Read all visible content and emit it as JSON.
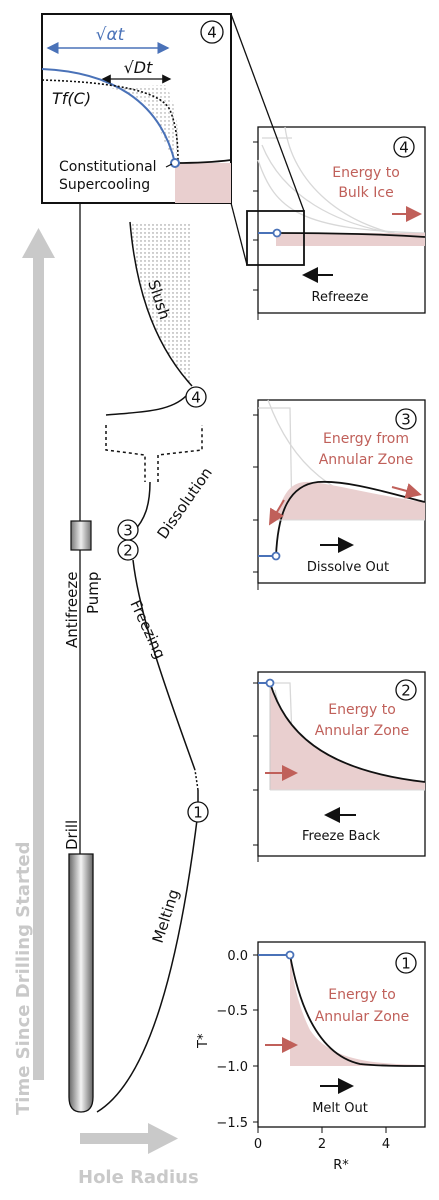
{
  "main_axes": {
    "y_label": "Time Since Drilling Started",
    "x_label": "Hole Radius"
  },
  "tools": {
    "drill_label": "Drill",
    "pump_label_1": "Antifreeze",
    "pump_label_2": "Pump"
  },
  "phases": {
    "melting": "Melting",
    "freezing": "Freezing",
    "dissolution": "Dissolution",
    "slush": "Slush"
  },
  "markers": [
    "1",
    "2",
    "3",
    "4"
  ],
  "inset": {
    "sqrt_at": "√αt",
    "sqrt_dt": "√Dt",
    "tf": "Tf(C)",
    "note_line1": "Constitutional",
    "note_line2": "Supercooling",
    "number": "4"
  },
  "panels": [
    {
      "number": "4",
      "energy_line1": "Energy to",
      "energy_line2": "Bulk Ice",
      "motion": "Refreeze"
    },
    {
      "number": "3",
      "energy_line1": "Energy from",
      "energy_line2": "Annular Zone",
      "motion": "Dissolve Out"
    },
    {
      "number": "2",
      "energy_line1": "Energy to",
      "energy_line2": "Annular Zone",
      "motion": "Freeze Back"
    },
    {
      "number": "1",
      "energy_line1": "Energy to",
      "energy_line2": "Annular Zone",
      "motion": "Melt Out"
    }
  ],
  "panel1_axes": {
    "y_ticks": [
      "0.0",
      "−0.5",
      "−1.0",
      "−1.5"
    ],
    "x_ticks": [
      "0",
      "2",
      "4"
    ],
    "y_label": "T*",
    "x_label": "R*"
  },
  "colors": {
    "accent_blue": "#4a72b8",
    "energy_red": "#c0605a",
    "fill_red": "#e9cfcf",
    "arrow_gray": "#c9c9c9"
  }
}
